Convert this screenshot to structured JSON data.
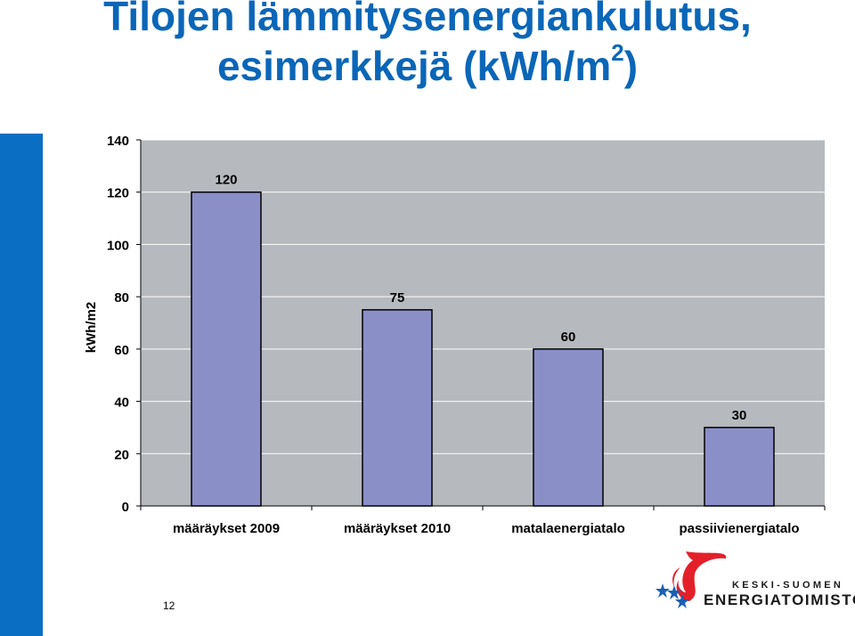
{
  "slide": {
    "title_line1": "Tilojen lämmitysenergiankulutus,",
    "title_line2_main": "esimerkkejä (kWh/m",
    "title_sup": "2",
    "title_line2_end": ")",
    "page_number": "12"
  },
  "logo": {
    "org_name_top": "KESKI-SUOMEN",
    "org_name_bottom": "ENERGIATOIMISTO",
    "icons": [
      "flame-icon",
      "star-icon"
    ]
  },
  "colors": {
    "title": "#0a66b8",
    "sidebar": "#0a6fc2",
    "plot_background": "#b6b9bd",
    "bar_fill": "#8b8fc8",
    "bar_stroke": "#000000",
    "flame": "#e3202a",
    "stars": "#1a5fb4"
  },
  "chart_data": {
    "type": "bar",
    "categories": [
      "määräykset 2009",
      "määräykset 2010",
      "matalaenergiatalo",
      "passiivienergiatalo"
    ],
    "values": [
      120,
      75,
      60,
      30
    ],
    "data_labels": [
      "120",
      "75",
      "60",
      "30"
    ],
    "ylabel": "kWh/m2",
    "ylim": [
      0,
      140
    ],
    "yticks": [
      0,
      20,
      40,
      60,
      80,
      100,
      120,
      140
    ],
    "grid": true,
    "legend": "none"
  }
}
